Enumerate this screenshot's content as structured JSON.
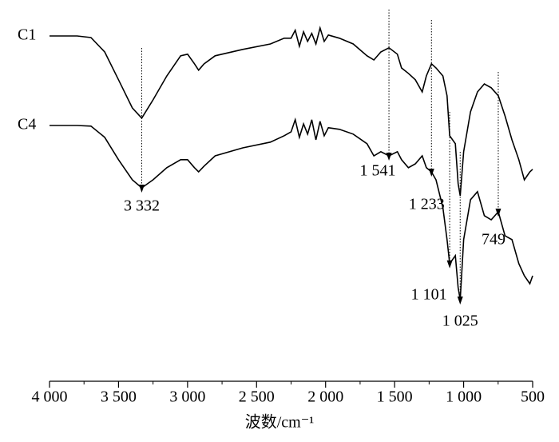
{
  "chart_data": {
    "type": "line",
    "xlabel": "波数/cm⁻¹",
    "x": [
      4000,
      3800,
      3700,
      3600,
      3500,
      3400,
      3332,
      3250,
      3150,
      3050,
      3000,
      2950,
      2920,
      2880,
      2800,
      2600,
      2400,
      2300,
      2250,
      2220,
      2190,
      2160,
      2130,
      2100,
      2070,
      2040,
      2010,
      1980,
      1900,
      1800,
      1700,
      1650,
      1600,
      1541,
      1480,
      1450,
      1400,
      1350,
      1300,
      1270,
      1233,
      1200,
      1150,
      1120,
      1101,
      1060,
      1040,
      1025,
      1000,
      950,
      900,
      850,
      800,
      749,
      700,
      650,
      600,
      560,
      520,
      500
    ],
    "series": [
      {
        "name": "C1",
        "color": "#000000",
        "values": [
          108,
          108,
          107.5,
          103,
          94.3,
          85.5,
          82.3,
          88,
          95.5,
          101.8,
          102.3,
          99.3,
          97.3,
          99.3,
          101.8,
          103.8,
          105.5,
          107.3,
          107.3,
          109.8,
          104.8,
          109.3,
          106.3,
          108.8,
          105.5,
          110.5,
          106.3,
          108.3,
          107.3,
          105.5,
          101.8,
          100.5,
          103,
          104.3,
          102.3,
          98,
          96.3,
          94.3,
          90.5,
          95.5,
          99.3,
          98,
          95.5,
          89.3,
          76.8,
          74.3,
          61.8,
          58,
          71.8,
          84.3,
          90.5,
          93,
          91.8,
          89.3,
          83,
          75.5,
          69.3,
          63,
          65.5,
          66.3
        ]
      },
      {
        "name": "C4",
        "color": "#000000",
        "values": [
          80,
          80,
          79.8,
          76.3,
          69.3,
          63,
          60.5,
          63,
          66.8,
          69.3,
          69.3,
          66.8,
          65.5,
          67.3,
          70.5,
          73,
          74.8,
          76.8,
          78,
          81.8,
          76.3,
          80.5,
          77.3,
          81.8,
          75.5,
          81.3,
          76.8,
          79.3,
          78.8,
          77.3,
          74.3,
          70.5,
          71.8,
          70.5,
          71.8,
          69.3,
          66.8,
          68,
          70.5,
          66.8,
          65.5,
          63,
          54.3,
          44.3,
          36.8,
          39.3,
          29.3,
          25.5,
          44.3,
          56.8,
          59.3,
          51.8,
          50.5,
          53,
          45.5,
          44.3,
          36.8,
          33,
          30.5,
          33
        ]
      }
    ],
    "annotations": [
      {
        "value": 3332,
        "label": "3 332"
      },
      {
        "value": 1541,
        "label": "1 541"
      },
      {
        "value": 1233,
        "label": "1 233"
      },
      {
        "value": 1101,
        "label": "1 101"
      },
      {
        "value": 1025,
        "label": "1 025"
      },
      {
        "value": 749,
        "label": "749"
      }
    ],
    "xlim": [
      4000,
      500
    ],
    "ylim": [
      0,
      120
    ],
    "xticks": [
      {
        "value": 4000,
        "label": "4 000"
      },
      {
        "value": 3500,
        "label": "3 500"
      },
      {
        "value": 3000,
        "label": "3 000"
      },
      {
        "value": 2500,
        "label": "2 500"
      },
      {
        "value": 2000,
        "label": "2 000"
      },
      {
        "value": 1500,
        "label": "1 500"
      },
      {
        "value": 1000,
        "label": "1 000"
      },
      500
    ],
    "grid": false
  }
}
